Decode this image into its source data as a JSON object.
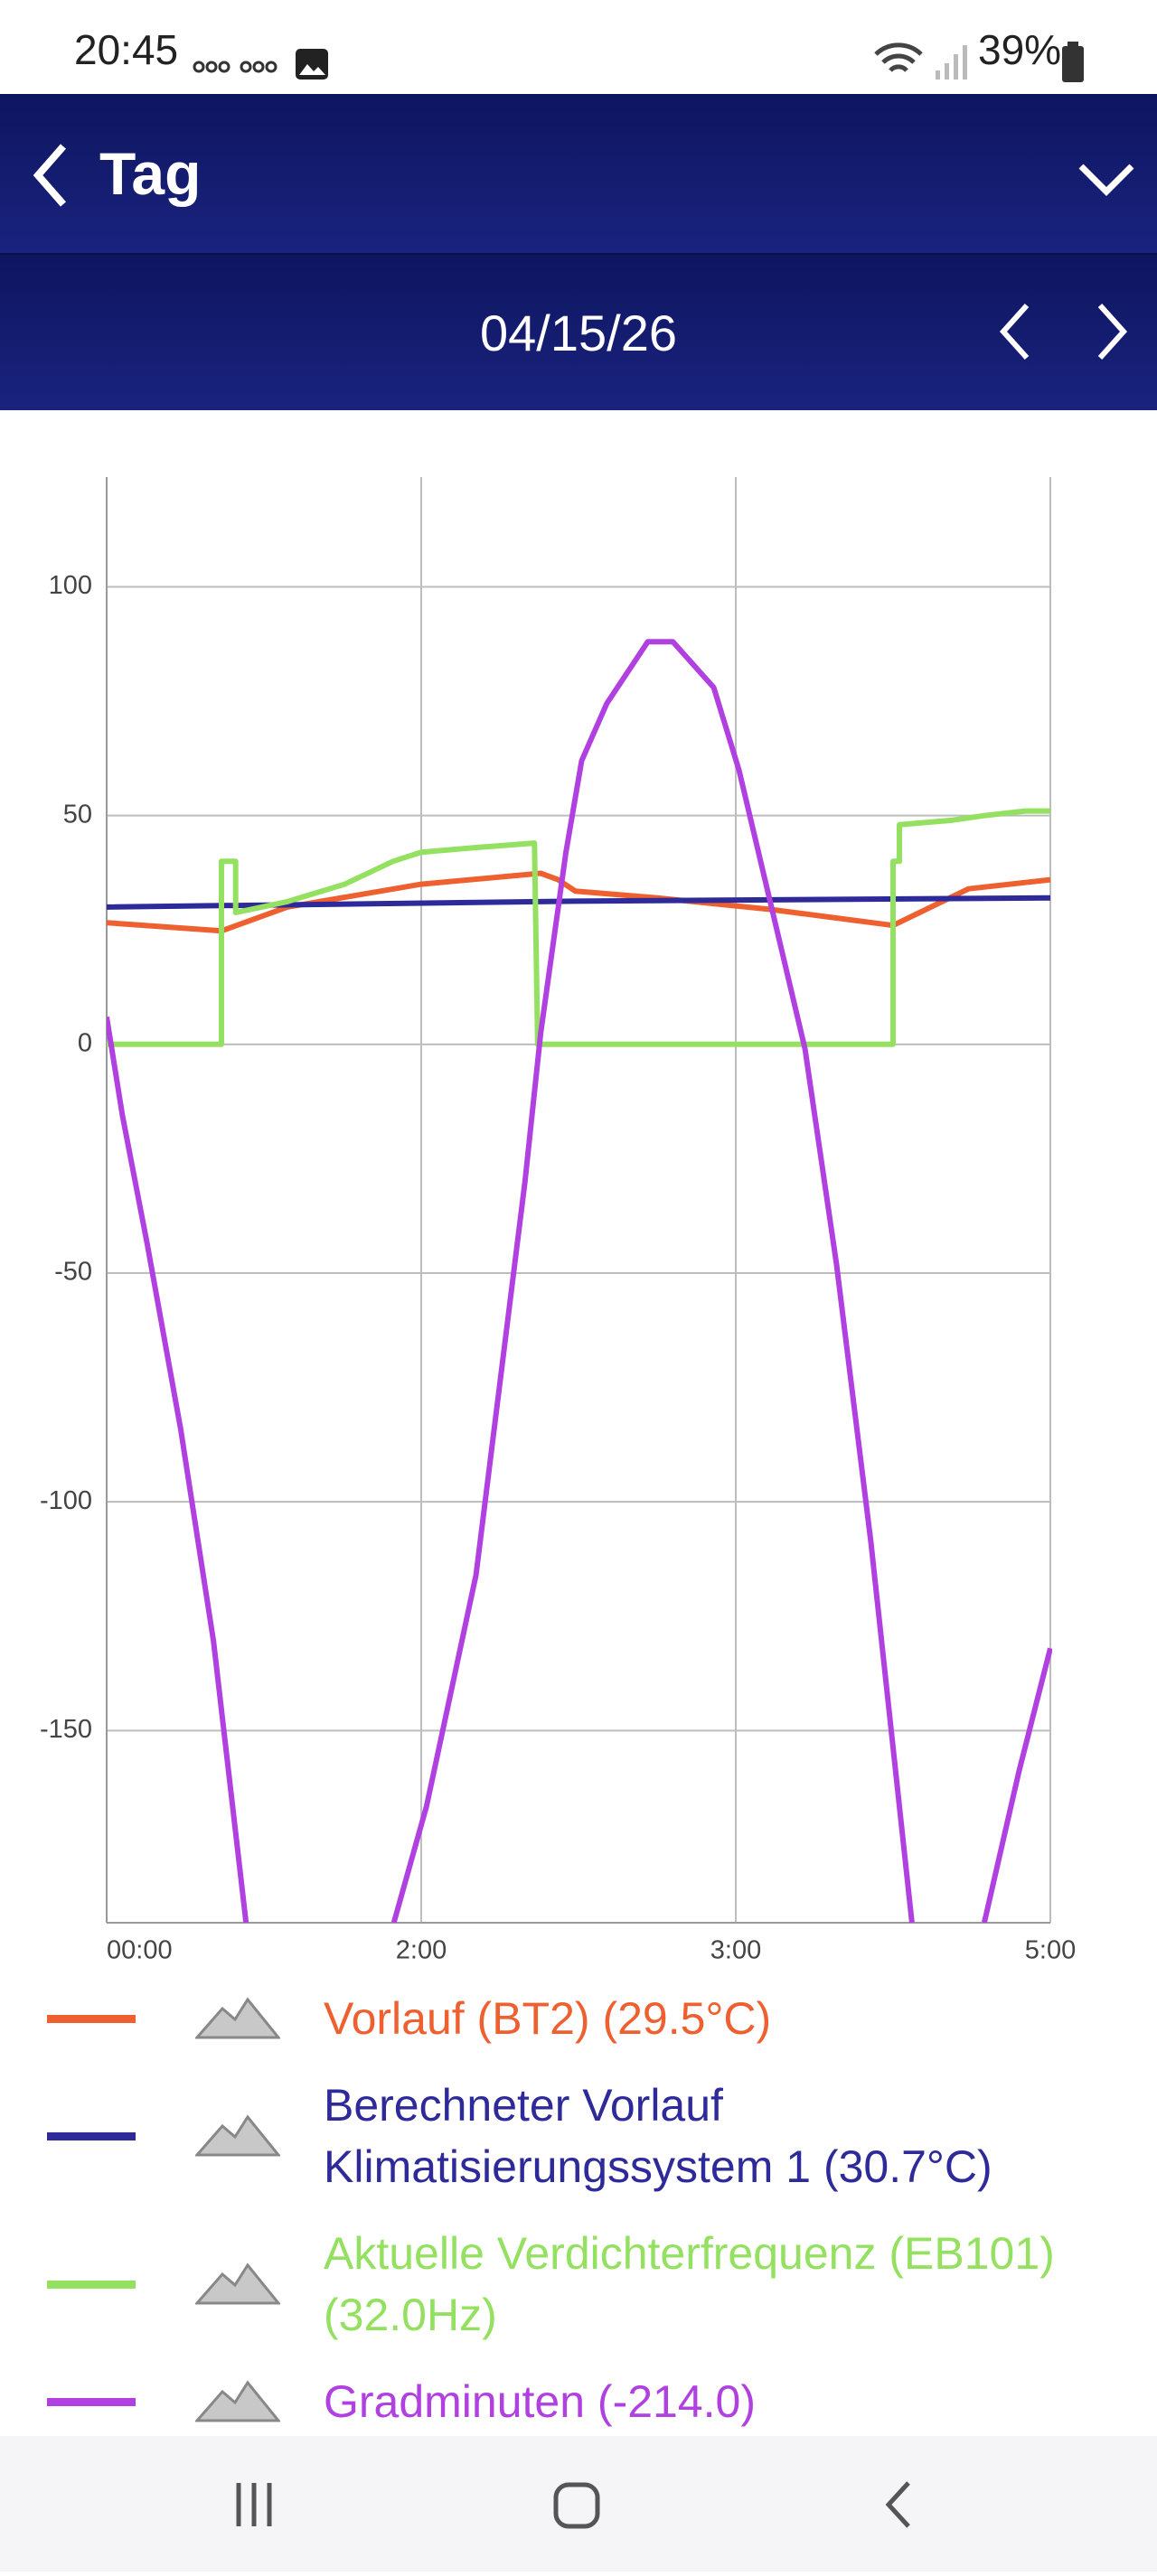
{
  "status_bar": {
    "time": "20:45",
    "battery": "39%"
  },
  "header": {
    "title": "Tag"
  },
  "date_bar": {
    "date": "04/15/26"
  },
  "chart_data": {
    "type": "line",
    "xlim": [
      0,
      3
    ],
    "xticks": [
      {
        "value": 0,
        "label": "00:00"
      },
      {
        "value": 1,
        "label": "2:00"
      },
      {
        "value": 2,
        "label": "3:00"
      },
      {
        "value": 3,
        "label": "5:00"
      }
    ],
    "ylim": [
      -192,
      124
    ],
    "yticks": [
      -150,
      -100,
      -50,
      0,
      50,
      100
    ],
    "grid": true,
    "series": [
      {
        "name": "Vorlauf (BT2) (29.5°C)",
        "color": "#ee6030",
        "x": [
          0,
          0.365,
          0.574,
          1,
          1.38,
          1.435,
          1.49,
          1.75,
          2.11,
          2.5,
          2.74,
          3
        ],
        "values": [
          26.6,
          24.8,
          30,
          35,
          37.4,
          36,
          33.5,
          32,
          29.5,
          26,
          34,
          36
        ]
      },
      {
        "name": "Berechneter Vorlauf Klimatisierungssystem 1 (30.7°C)",
        "color": "#2e2a9a",
        "x": [
          0,
          1.49,
          3
        ],
        "values": [
          30,
          31.3,
          32
        ]
      },
      {
        "name": "Aktuelle Verdichterfrequenz (EB101) (32.0Hz)",
        "color": "#94e060",
        "x": [
          0,
          0.365,
          0.365,
          0.41,
          0.41,
          0.574,
          0.757,
          0.91,
          1,
          1.17,
          1.36,
          1.37,
          2.5,
          2.5,
          2.52,
          2.52,
          2.69,
          2.79,
          2.92,
          3
        ],
        "values": [
          0,
          0,
          40,
          40,
          28.8,
          31.2,
          35,
          40,
          42,
          43,
          44,
          0,
          0,
          40,
          40,
          48,
          49,
          50,
          51,
          51
        ]
      },
      {
        "name": "Gradminuten (-214.0)",
        "color": "#b040e0",
        "x": [
          0,
          0.05,
          0.13,
          0.235,
          0.34,
          0.443,
          0.7,
          0.913,
          1.017,
          1.174,
          1.33,
          1.38,
          1.46,
          1.51,
          1.59,
          1.72,
          1.8,
          1.93,
          2.01,
          2.11,
          2.22,
          2.32,
          2.43,
          2.56,
          2.7,
          2.79,
          2.9,
          3
        ],
        "values": [
          6,
          -15.5,
          -44,
          -84,
          -130.6,
          -192,
          null,
          -192,
          -166.5,
          -116,
          -30,
          2.5,
          42,
          62,
          74.5,
          88,
          88,
          78,
          60,
          31,
          -1,
          -48,
          -109,
          -192,
          null,
          -192,
          -159,
          -132
        ]
      }
    ]
  }
}
